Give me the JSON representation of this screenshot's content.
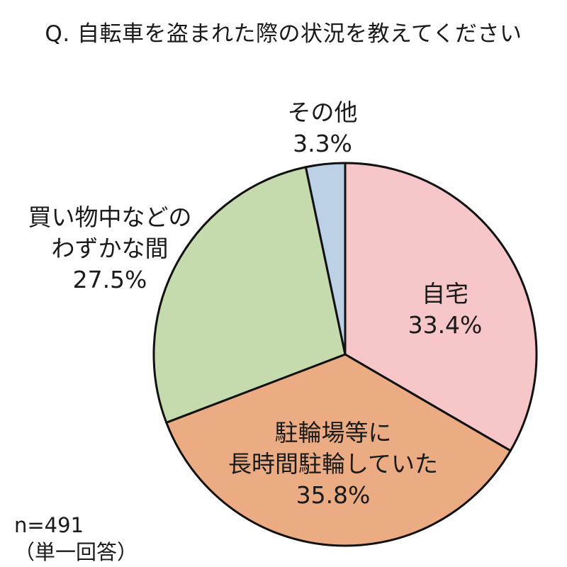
{
  "chart_data": {
    "type": "pie",
    "title": "Q. 自転車を盗まれた際の状況を教えてください",
    "slices": [
      {
        "label": [
          "自宅"
        ],
        "value": 33.4,
        "value_label": "33.4%",
        "color": "#f6c6c8"
      },
      {
        "label": [
          "駐輪場等に",
          "長時間駐輪していた"
        ],
        "value": 35.8,
        "value_label": "35.8%",
        "color": "#ebac84"
      },
      {
        "label": [
          "買い物中などの",
          "わずかな間"
        ],
        "value": 27.5,
        "value_label": "27.5%",
        "color": "#c6dbad"
      },
      {
        "label": [
          "その他"
        ],
        "value": 3.3,
        "value_label": "3.3%",
        "color": "#bcd1e6"
      }
    ],
    "start": "12 o'clock",
    "direction": "clockwise"
  },
  "note": {
    "sample": "n=491",
    "answer_type": "（単一回答）"
  }
}
